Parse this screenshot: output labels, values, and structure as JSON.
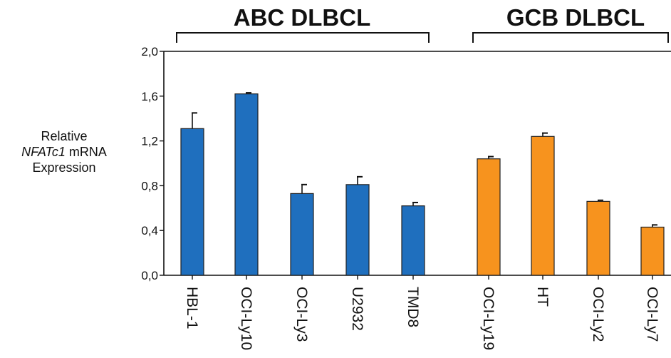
{
  "chart_data": {
    "type": "bar",
    "groups": [
      {
        "label": "ABC DLBCL",
        "color": "#1f6fbe",
        "categories": [
          "HBL-1",
          "OCI-Ly10",
          "OCI-Ly3",
          "U2932",
          "TMD8"
        ]
      },
      {
        "label": "GCB DLBCL",
        "color": "#f7931e",
        "categories": [
          "OCI-Ly19",
          "HT",
          "OCI-Ly2",
          "OCI-Ly7"
        ]
      }
    ],
    "categories": [
      "HBL-1",
      "OCI-Ly10",
      "OCI-Ly3",
      "U2932",
      "TMD8",
      "OCI-Ly19",
      "HT",
      "OCI-Ly2",
      "OCI-Ly7"
    ],
    "values": [
      1.31,
      1.62,
      0.73,
      0.81,
      0.62,
      1.04,
      1.24,
      0.66,
      0.43
    ],
    "errors": [
      0.14,
      0.01,
      0.08,
      0.07,
      0.03,
      0.02,
      0.03,
      0.01,
      0.02
    ],
    "ylabel_lines": [
      "Relative",
      "NFATc1",
      " mRNA",
      "Expression"
    ],
    "ylim": [
      0,
      2.0
    ],
    "yticks": [
      "0,0",
      "0,4",
      "0,8",
      "1,2",
      "1,6",
      "2,0"
    ],
    "ytick_values": [
      0,
      0.4,
      0.8,
      1.2,
      1.6,
      2.0
    ],
    "grid": false
  }
}
